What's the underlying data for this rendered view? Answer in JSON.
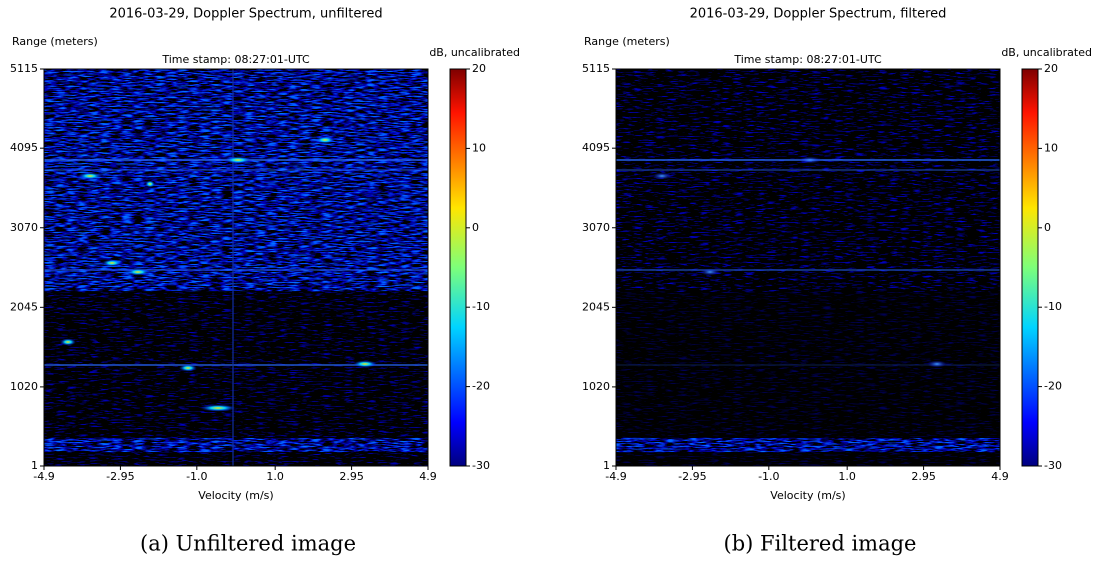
{
  "chart_data": [
    {
      "type": "heatmap",
      "title": "2016-03-29, Doppler Spectrum, unfiltered",
      "subtitle": "Time stamp: 08:27:01-UTC",
      "y_label": "Range (meters)",
      "x_label": "Velocity (m/s)",
      "xlim": [
        -4.9,
        4.9
      ],
      "xticks": [
        -4.9,
        -2.95,
        {
          "value": -1,
          "label": "-1.0"
        },
        {
          "value": 1,
          "label": "1.0"
        },
        2.95,
        4.9
      ],
      "ylim": [
        1,
        5115
      ],
      "yticks": [
        1,
        1020,
        2045,
        3070,
        4095,
        5115
      ],
      "colorbar": {
        "label": "dB, uncalibrated",
        "colormap": "jet",
        "lim": [
          -30,
          20
        ],
        "ticks": [
          -30,
          -20,
          -10,
          0,
          10,
          20
        ]
      },
      "caption": "(a) Unfiltered image"
    },
    {
      "type": "heatmap",
      "title": "2016-03-29, Doppler Spectrum, filtered",
      "subtitle": "Time stamp: 08:27:01-UTC",
      "y_label": "Range (meters)",
      "x_label": "Velocity (m/s)",
      "xlim": [
        -4.9,
        4.9
      ],
      "xticks": [
        -4.9,
        -2.95,
        {
          "value": -1,
          "label": "-1.0"
        },
        {
          "value": 1,
          "label": "1.0"
        },
        2.95,
        4.9
      ],
      "ylim": [
        1,
        5115
      ],
      "yticks": [
        1,
        1020,
        2045,
        3070,
        4095,
        5115
      ],
      "colorbar": {
        "label": "dB, uncalibrated",
        "colormap": "jet",
        "lim": [
          -30,
          20
        ],
        "ticks": [
          -30,
          -20,
          -10,
          0,
          10,
          20
        ]
      },
      "caption": "(b) Filtered image"
    }
  ]
}
